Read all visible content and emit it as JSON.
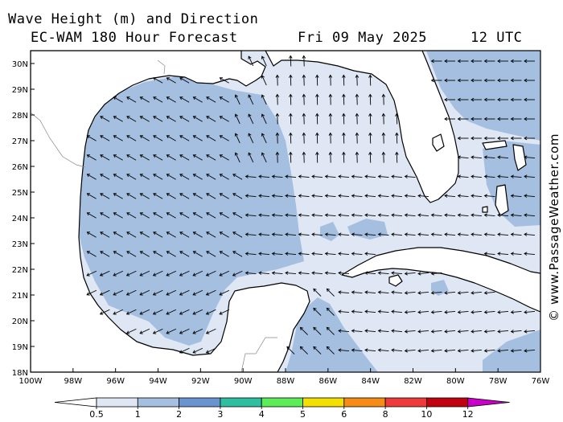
{
  "header": {
    "title": "Wave Height (m) and Direction",
    "model": "EC-WAM 180 Hour Forecast",
    "date": "Fri 09 May 2025",
    "time": "12 UTC"
  },
  "copyright": "© www.PassageWeather.com",
  "map": {
    "lon_range": [
      -100,
      -76
    ],
    "lat_range": [
      18,
      30.5
    ],
    "lon_labels": [
      "100W",
      "98W",
      "96W",
      "94W",
      "92W",
      "90W",
      "88W",
      "86W",
      "84W",
      "82W",
      "80W",
      "78W",
      "76W"
    ],
    "lat_labels": [
      "18N",
      "19N",
      "20N",
      "21N",
      "22N",
      "23N",
      "24N",
      "25N",
      "26N",
      "27N",
      "28N",
      "29N",
      "30N"
    ],
    "prevailing_direction": "easterly; wave arrows point west to northwest over the open Gulf and north in the northeastern Gulf",
    "colors": {
      "land": "#ffffff",
      "wave_0_5_1": "#dfe7f4",
      "wave_1_2": "#a5bfe1",
      "coast": "#000000",
      "arrows": "#000000"
    }
  },
  "legend": {
    "labels": [
      "0.5",
      "1",
      "2",
      "3",
      "4",
      "5",
      "6",
      "8",
      "10",
      "12"
    ],
    "colors": [
      "#dfe7f4",
      "#a5bfe1",
      "#6a94cf",
      "#2dbfa0",
      "#5ced57",
      "#f3e000",
      "#f68b18",
      "#ed3b3b",
      "#c10010",
      "#c800c8"
    ]
  }
}
